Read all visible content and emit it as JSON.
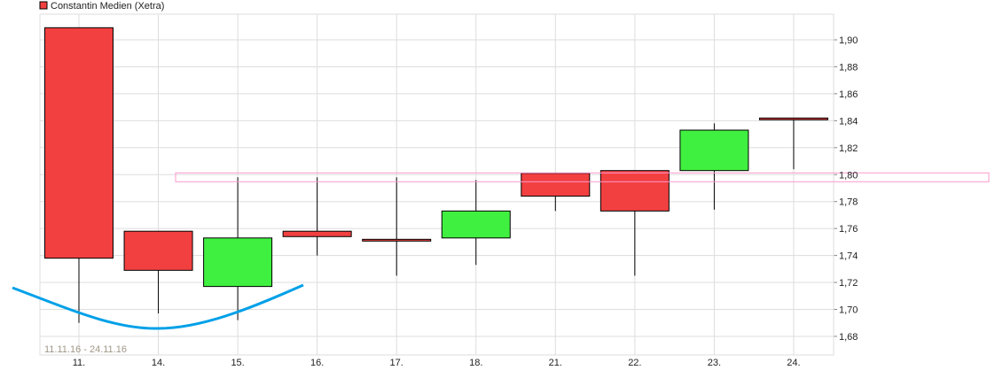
{
  "chart_data": {
    "type": "candlestick",
    "legend": {
      "label": "Constantin Medien (Xetra)",
      "placement": "top-left",
      "color": "#f24040"
    },
    "date_range": "11.11.16 - 24.11.16",
    "categories": [
      "11.",
      "14.",
      "15.",
      "16.",
      "17.",
      "18.",
      "21.",
      "22.",
      "23.",
      "24."
    ],
    "candles": [
      {
        "open": 1.909,
        "high": 1.909,
        "low": 1.69,
        "close": 1.738
      },
      {
        "open": 1.758,
        "high": 1.758,
        "low": 1.697,
        "close": 1.729
      },
      {
        "open": 1.717,
        "high": 1.798,
        "low": 1.692,
        "close": 1.753
      },
      {
        "open": 1.758,
        "high": 1.798,
        "low": 1.74,
        "close": 1.754
      },
      {
        "open": 1.752,
        "high": 1.798,
        "low": 1.725,
        "close": 1.751
      },
      {
        "open": 1.753,
        "high": 1.796,
        "low": 1.733,
        "close": 1.773
      },
      {
        "open": 1.801,
        "high": 1.801,
        "low": 1.773,
        "close": 1.784
      },
      {
        "open": 1.803,
        "high": 1.803,
        "low": 1.725,
        "close": 1.773
      },
      {
        "open": 1.803,
        "high": 1.838,
        "low": 1.774,
        "close": 1.833
      },
      {
        "open": 1.842,
        "high": 1.842,
        "low": 1.804,
        "close": 1.841
      }
    ],
    "yticks": [
      "1,68",
      "1,70",
      "1,72",
      "1,74",
      "1,76",
      "1,78",
      "1,80",
      "1,82",
      "1,84",
      "1,86",
      "1,88",
      "1,90"
    ],
    "ylim": [
      1.666,
      1.919
    ],
    "grid": true,
    "colors": {
      "up": "#40f040",
      "down": "#f24040",
      "band": "#ff99cc",
      "curve": "#00a0e8"
    },
    "band_level": 1.798
  }
}
